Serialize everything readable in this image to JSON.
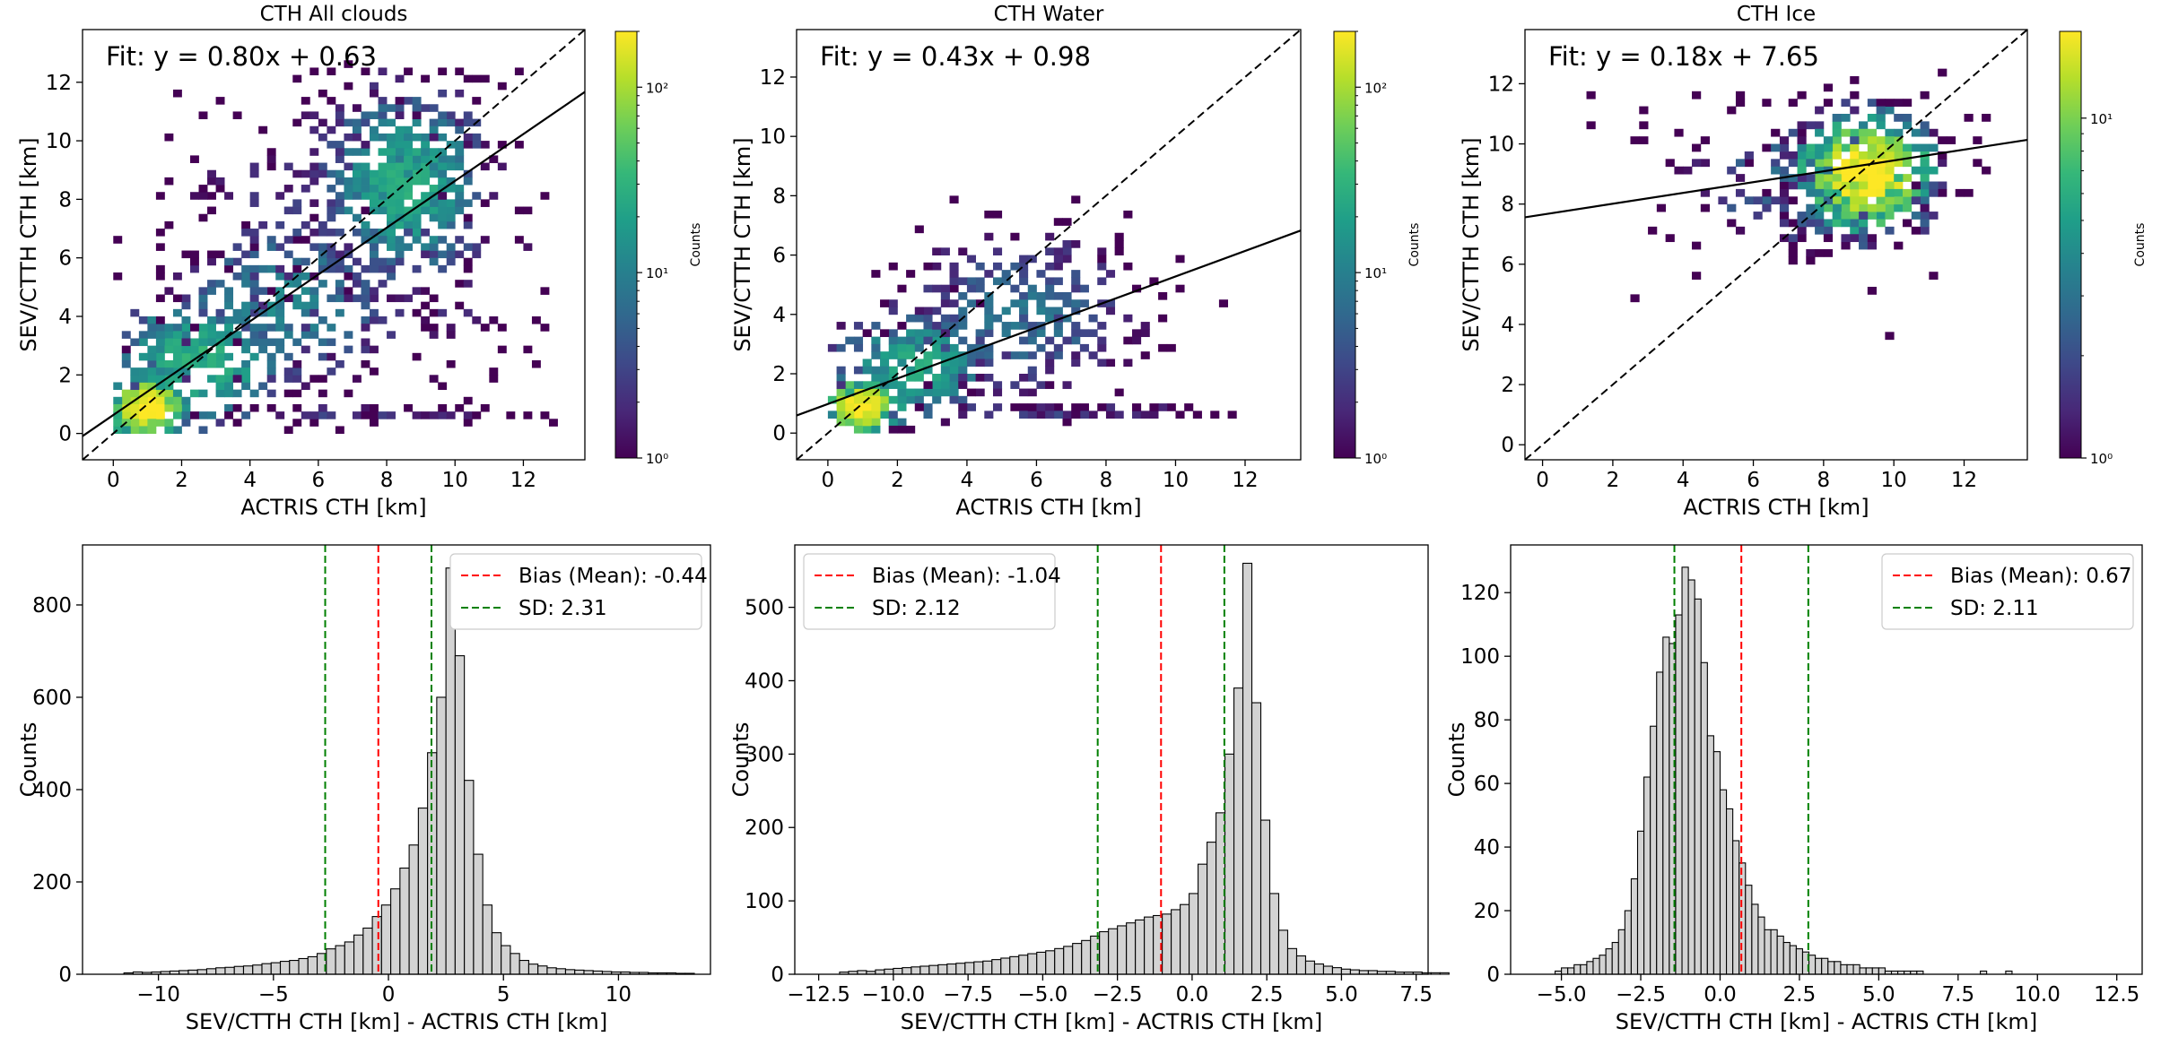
{
  "colors": {
    "viridis": [
      "#440154",
      "#482878",
      "#3e4989",
      "#31688e",
      "#26828e",
      "#1f9e89",
      "#35b779",
      "#6ece58",
      "#b5de2b",
      "#fde725"
    ],
    "hist_fill": "#d3d3d3",
    "bias_line": "#ff0000",
    "sd_line": "#008000",
    "fit_line": "#000000"
  },
  "chart_data": [
    {
      "type": "heatmap",
      "title": "CTH All clouds",
      "xlabel": "ACTRIS CTH [km]",
      "ylabel": "SEV/CTTH CTH [km]",
      "xlim": [
        -0.9,
        13.8
      ],
      "ylim": [
        -0.9,
        13.8
      ],
      "xticks": [
        0,
        2,
        4,
        6,
        8,
        10,
        12
      ],
      "yticks": [
        0,
        2,
        4,
        6,
        8,
        10,
        12
      ],
      "fit_label": "Fit: y = 0.80x + 0.63",
      "fit": {
        "slope": 0.8,
        "intercept": 0.63
      },
      "colorbar": {
        "label": "Counts",
        "scale": "log",
        "ticks": [
          {
            "v": 1,
            "label": "10⁰"
          },
          {
            "v": 10,
            "label": "10¹"
          },
          {
            "v": 100,
            "label": "10²"
          }
        ],
        "max": 200
      },
      "cluster_desc": [
        {
          "cx": 1.0,
          "cy": 0.9,
          "sx": 0.5,
          "sy": 0.5,
          "n": 140,
          "peak": 200
        },
        {
          "cx": 2.5,
          "cy": 2.5,
          "sx": 1.2,
          "sy": 1.1,
          "n": 220,
          "peak": 30
        },
        {
          "cx": 5.0,
          "cy": 4.5,
          "sx": 1.6,
          "sy": 1.4,
          "n": 200,
          "peak": 12
        },
        {
          "cx": 8.5,
          "cy": 8.5,
          "sx": 1.2,
          "sy": 1.6,
          "n": 420,
          "peak": 25
        },
        {
          "cx": 7.0,
          "cy": 6.5,
          "sx": 3.5,
          "sy": 3.5,
          "n": 260,
          "peak": 3
        },
        {
          "cx": 7.0,
          "cy": 0.7,
          "sx": 3.0,
          "sy": 0.1,
          "n": 50,
          "peak": 3
        }
      ],
      "seed": 11
    },
    {
      "type": "heatmap",
      "title": "CTH Water",
      "xlabel": "ACTRIS CTH [km]",
      "ylabel": "SEV/CTTH CTH [km]",
      "xlim": [
        -0.9,
        13.6
      ],
      "ylim": [
        -0.9,
        13.6
      ],
      "xticks": [
        0,
        2,
        4,
        6,
        8,
        10,
        12
      ],
      "yticks": [
        0,
        2,
        4,
        6,
        8,
        10,
        12
      ],
      "fit_label": "Fit: y = 0.43x + 0.98",
      "fit": {
        "slope": 0.43,
        "intercept": 0.98
      },
      "colorbar": {
        "label": "Counts",
        "scale": "log",
        "ticks": [
          {
            "v": 1,
            "label": "10⁰"
          },
          {
            "v": 10,
            "label": "10¹"
          },
          {
            "v": 100,
            "label": "10²"
          }
        ],
        "max": 200
      },
      "cluster_desc": [
        {
          "cx": 1.0,
          "cy": 0.9,
          "sx": 0.5,
          "sy": 0.4,
          "n": 140,
          "peak": 200
        },
        {
          "cx": 2.5,
          "cy": 2.3,
          "sx": 1.1,
          "sy": 0.9,
          "n": 200,
          "peak": 25
        },
        {
          "cx": 5.5,
          "cy": 4.0,
          "sx": 1.8,
          "sy": 1.5,
          "n": 280,
          "peak": 8
        },
        {
          "cx": 7.0,
          "cy": 0.7,
          "sx": 2.5,
          "sy": 0.1,
          "n": 45,
          "peak": 3
        }
      ],
      "seed": 23
    },
    {
      "type": "heatmap",
      "title": "CTH Ice",
      "xlabel": "ACTRIS CTH [km]",
      "ylabel": "SEV/CTTH CTH [km]",
      "xlim": [
        -0.5,
        13.8
      ],
      "ylim": [
        -0.5,
        13.8
      ],
      "xticks": [
        0,
        2,
        4,
        6,
        8,
        10,
        12
      ],
      "yticks": [
        0,
        2,
        4,
        6,
        8,
        10,
        12
      ],
      "fit_label": "Fit: y = 0.18x + 7.65",
      "fit": {
        "slope": 0.18,
        "intercept": 7.65
      },
      "colorbar": {
        "label": "Counts",
        "scale": "log",
        "ticks": [
          {
            "v": 1,
            "label": "10⁰"
          },
          {
            "v": 10,
            "label": "10¹"
          }
        ],
        "max": 18
      },
      "cluster_desc": [
        {
          "cx": 9.2,
          "cy": 9.0,
          "sx": 1.1,
          "sy": 1.1,
          "n": 420,
          "peak": 18
        },
        {
          "cx": 7.5,
          "cy": 8.8,
          "sx": 2.5,
          "sy": 1.6,
          "n": 150,
          "peak": 3
        }
      ],
      "seed": 37
    },
    {
      "type": "bar",
      "xlabel": "SEV/CTTH CTH [km] - ACTRIS CTH [km]",
      "ylabel": "Counts",
      "xlim": [
        -13.3,
        14.0
      ],
      "ylim": [
        0,
        930
      ],
      "xticks": [
        {
          "v": -10,
          "label": "−10"
        },
        {
          "v": -5,
          "label": "−5"
        },
        {
          "v": 0,
          "label": "0"
        },
        {
          "v": 5,
          "label": "5"
        },
        {
          "v": 10,
          "label": "10"
        }
      ],
      "yticks": [
        0,
        200,
        400,
        600,
        800
      ],
      "bias": -0.44,
      "sd": 2.31,
      "bias_label": "Bias (Mean): -0.44",
      "sd_label": "SD: 2.31",
      "legend": "top-right",
      "bin_start": -11.5,
      "bin_width": 0.4,
      "counts": [
        3,
        5,
        4,
        5,
        6,
        7,
        8,
        9,
        10,
        12,
        14,
        15,
        17,
        18,
        20,
        23,
        25,
        28,
        30,
        34,
        38,
        45,
        55,
        62,
        70,
        85,
        100,
        125,
        150,
        185,
        230,
        280,
        360,
        480,
        600,
        880,
        690,
        420,
        260,
        150,
        90,
        62,
        45,
        30,
        22,
        18,
        14,
        12,
        10,
        9,
        8,
        7,
        6,
        5,
        5,
        4,
        4,
        3,
        3,
        3,
        2,
        2
      ]
    },
    {
      "type": "bar",
      "xlabel": "SEV/CTTH CTH [km] - ACTRIS CTH [km]",
      "ylabel": "Counts",
      "xlim": [
        -13.3,
        7.9
      ],
      "ylim": [
        0,
        585
      ],
      "xticks": [
        {
          "v": -12.5,
          "label": "−12.5"
        },
        {
          "v": -10,
          "label": "−10.0"
        },
        {
          "v": -7.5,
          "label": "−7.5"
        },
        {
          "v": -5,
          "label": "−5.0"
        },
        {
          "v": -2.5,
          "label": "−2.5"
        },
        {
          "v": 0,
          "label": "0.0"
        },
        {
          "v": 2.5,
          "label": "2.5"
        },
        {
          "v": 5,
          "label": "5.0"
        },
        {
          "v": 7.5,
          "label": "7.5"
        }
      ],
      "yticks": [
        0,
        100,
        200,
        300,
        400,
        500
      ],
      "bias": -1.04,
      "sd": 2.12,
      "bias_label": "Bias (Mean): -1.04",
      "sd_label": "SD: 2.12",
      "legend": "top-left",
      "bin_start": -11.8,
      "bin_width": 0.3,
      "counts": [
        3,
        4,
        5,
        4,
        6,
        7,
        8,
        9,
        10,
        11,
        12,
        13,
        14,
        15,
        16,
        17,
        18,
        20,
        22,
        24,
        26,
        28,
        30,
        32,
        35,
        38,
        42,
        46,
        52,
        58,
        62,
        66,
        70,
        74,
        78,
        80,
        82,
        88,
        95,
        110,
        150,
        180,
        220,
        300,
        390,
        560,
        370,
        210,
        110,
        60,
        35,
        25,
        18,
        14,
        11,
        9,
        7,
        6,
        5,
        5,
        4,
        4,
        3,
        3,
        3,
        2,
        2,
        2
      ]
    },
    {
      "type": "bar",
      "xlabel": "SEV/CTTH CTH [km] - ACTRIS CTH [km]",
      "ylabel": "Counts",
      "xlim": [
        -6.6,
        13.3
      ],
      "ylim": [
        0,
        135
      ],
      "xticks": [
        {
          "v": -5,
          "label": "−5.0"
        },
        {
          "v": -2.5,
          "label": "−2.5"
        },
        {
          "v": 0,
          "label": "0.0"
        },
        {
          "v": 2.5,
          "label": "2.5"
        },
        {
          "v": 5,
          "label": "5.0"
        },
        {
          "v": 7.5,
          "label": "7.5"
        },
        {
          "v": 10,
          "label": "10.0"
        },
        {
          "v": 12.5,
          "label": "12.5"
        }
      ],
      "yticks": [
        0,
        20,
        40,
        60,
        80,
        100,
        120
      ],
      "bias": 0.67,
      "sd": 2.11,
      "bias_label": "Bias (Mean): 0.67",
      "sd_label": "SD: 2.11",
      "legend": "top-right",
      "bin_start": -5.2,
      "bin_width": 0.2,
      "counts": [
        1,
        2,
        2,
        3,
        3,
        4,
        5,
        6,
        8,
        10,
        14,
        20,
        30,
        45,
        62,
        78,
        95,
        106,
        104,
        113,
        128,
        124,
        118,
        98,
        75,
        70,
        58,
        52,
        42,
        35,
        28,
        22,
        18,
        14,
        14,
        12,
        10,
        9,
        8,
        7,
        6,
        5,
        5,
        4,
        4,
        3,
        3,
        3,
        2,
        2,
        2,
        2,
        1,
        1,
        1,
        1,
        1,
        1,
        0,
        0,
        0,
        0,
        0,
        0,
        0,
        0,
        0,
        1,
        0,
        0,
        0,
        1
      ]
    }
  ]
}
